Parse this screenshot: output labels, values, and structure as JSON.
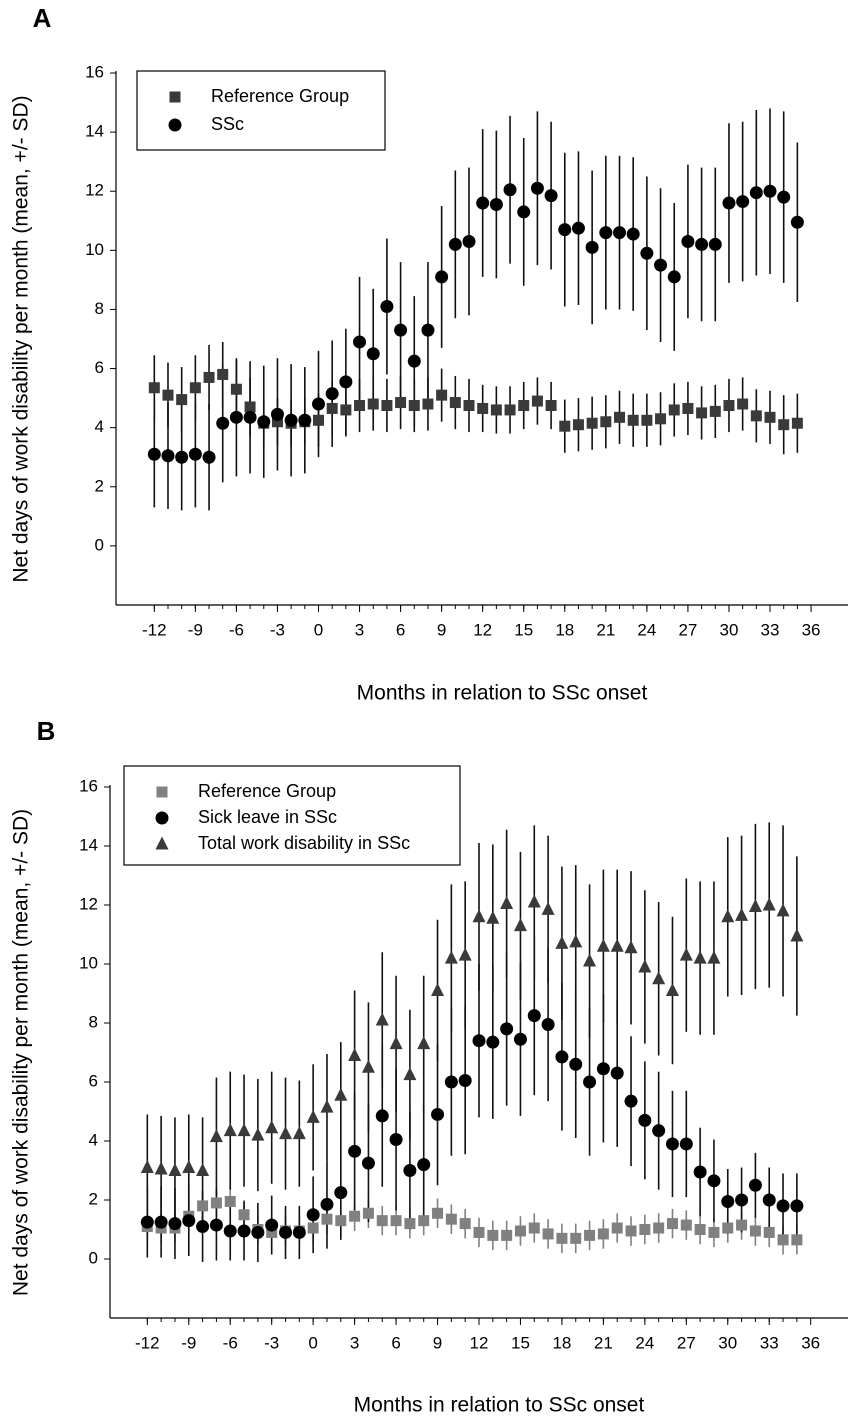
{
  "chart_data": [
    {
      "type": "scatter",
      "panel_label": "A",
      "x_label": "Months in relation to SSc onset",
      "y_label": "Net days of work disability per month (mean, +/- SD)",
      "x": [
        -12,
        -11,
        -10,
        -9,
        -8,
        -7,
        -6,
        -5,
        -4,
        -3,
        -2,
        -1,
        0,
        1,
        2,
        3,
        4,
        5,
        6,
        7,
        8,
        9,
        10,
        11,
        12,
        13,
        14,
        15,
        16,
        17,
        18,
        19,
        20,
        21,
        22,
        23,
        24,
        25,
        26,
        27,
        28,
        29,
        30,
        31,
        32,
        33,
        34,
        35
      ],
      "xlim": [
        -14.8,
        38.7
      ],
      "xticks": [
        -12,
        -9,
        -6,
        -3,
        0,
        3,
        6,
        9,
        12,
        15,
        18,
        21,
        24,
        27,
        30,
        33,
        36
      ],
      "ylim": [
        -2,
        16
      ],
      "yticks": [
        0,
        2,
        4,
        6,
        8,
        10,
        12,
        14,
        16
      ],
      "legend": "upper left",
      "series": [
        {
          "name": "Reference Group",
          "marker": "square",
          "color": "#3a3a3a",
          "values": [
            5.35,
            5.1,
            4.95,
            5.35,
            5.7,
            5.8,
            5.3,
            4.7,
            4.15,
            4.2,
            4.15,
            4.2,
            4.25,
            4.65,
            4.6,
            4.75,
            4.8,
            4.75,
            4.85,
            4.75,
            4.8,
            5.1,
            4.85,
            4.75,
            4.65,
            4.6,
            4.6,
            4.75,
            4.9,
            4.75,
            4.05,
            4.1,
            4.15,
            4.2,
            4.35,
            4.25,
            4.25,
            4.3,
            4.6,
            4.65,
            4.5,
            4.55,
            4.75,
            4.8,
            4.4,
            4.35,
            4.1,
            4.15
          ],
          "errors": [
            1.1,
            1.1,
            1.1,
            1.1,
            1.1,
            1.1,
            1.0,
            1.0,
            0.8,
            0.8,
            0.8,
            0.8,
            0.9,
            0.9,
            0.9,
            0.9,
            0.9,
            0.9,
            0.9,
            0.9,
            0.9,
            0.9,
            0.9,
            0.9,
            0.8,
            0.8,
            0.8,
            0.8,
            0.8,
            0.8,
            0.9,
            0.9,
            0.9,
            0.9,
            0.9,
            0.9,
            0.9,
            0.9,
            0.9,
            0.9,
            0.9,
            0.9,
            0.9,
            0.9,
            0.9,
            0.9,
            1.0,
            1.0
          ]
        },
        {
          "name": "SSc",
          "marker": "circle",
          "color": "#000000",
          "values": [
            3.1,
            3.05,
            3.0,
            3.1,
            3.0,
            4.15,
            4.35,
            4.35,
            4.2,
            4.45,
            4.25,
            4.25,
            4.8,
            5.15,
            5.55,
            6.9,
            6.5,
            8.1,
            7.3,
            6.25,
            7.3,
            9.1,
            10.2,
            10.3,
            11.6,
            11.55,
            12.05,
            11.3,
            12.1,
            11.85,
            10.7,
            10.75,
            10.1,
            10.6,
            10.6,
            10.55,
            9.9,
            9.5,
            9.1,
            10.3,
            10.2,
            10.2,
            11.6,
            11.65,
            11.95,
            12.0,
            11.8,
            10.95
          ],
          "errors": [
            1.8,
            1.8,
            1.8,
            1.8,
            1.8,
            2.0,
            2.0,
            1.9,
            1.9,
            1.9,
            1.9,
            1.8,
            1.8,
            1.8,
            1.8,
            2.2,
            2.2,
            2.3,
            2.3,
            2.2,
            2.3,
            2.4,
            2.5,
            2.5,
            2.5,
            2.5,
            2.5,
            2.5,
            2.6,
            2.5,
            2.6,
            2.6,
            2.6,
            2.6,
            2.6,
            2.6,
            2.6,
            2.6,
            2.5,
            2.6,
            2.6,
            2.6,
            2.7,
            2.7,
            2.8,
            2.8,
            2.9,
            2.7
          ]
        }
      ]
    },
    {
      "type": "scatter",
      "panel_label": "B",
      "x_label": "Months in relation to SSc onset",
      "y_label": "Net days of work disability per month (mean, +/- SD)",
      "x": [
        -12,
        -11,
        -10,
        -9,
        -8,
        -7,
        -6,
        -5,
        -4,
        -3,
        -2,
        -1,
        0,
        1,
        2,
        3,
        4,
        5,
        6,
        7,
        8,
        9,
        10,
        11,
        12,
        13,
        14,
        15,
        16,
        17,
        18,
        19,
        20,
        21,
        22,
        23,
        24,
        25,
        26,
        27,
        28,
        29,
        30,
        31,
        32,
        33,
        34,
        35
      ],
      "xlim": [
        -14.7,
        38.7
      ],
      "xticks": [
        -12,
        -9,
        -6,
        -3,
        0,
        3,
        6,
        9,
        12,
        15,
        18,
        21,
        24,
        27,
        30,
        33,
        36
      ],
      "ylim": [
        -2,
        16
      ],
      "yticks": [
        0,
        2,
        4,
        6,
        8,
        10,
        12,
        14,
        16
      ],
      "legend": "upper left",
      "series": [
        {
          "name": "Reference Group",
          "marker": "square",
          "color": "#808080",
          "values": [
            1.1,
            1.05,
            1.05,
            1.45,
            1.8,
            1.9,
            1.95,
            1.5,
            1.0,
            0.9,
            0.95,
            0.95,
            1.05,
            1.35,
            1.3,
            1.45,
            1.55,
            1.3,
            1.3,
            1.2,
            1.3,
            1.55,
            1.35,
            1.2,
            0.9,
            0.8,
            0.8,
            0.95,
            1.05,
            0.85,
            0.7,
            0.7,
            0.8,
            0.85,
            1.05,
            0.95,
            1.0,
            1.05,
            1.2,
            1.15,
            1.0,
            0.9,
            1.05,
            1.15,
            0.95,
            0.9,
            0.65,
            0.65
          ],
          "errors": [
            0.5,
            0.5,
            0.5,
            0.5,
            0.5,
            0.5,
            0.5,
            0.5,
            0.5,
            0.5,
            0.5,
            0.5,
            0.5,
            0.5,
            0.5,
            0.5,
            0.5,
            0.5,
            0.5,
            0.5,
            0.5,
            0.5,
            0.5,
            0.5,
            0.5,
            0.5,
            0.5,
            0.5,
            0.5,
            0.5,
            0.5,
            0.5,
            0.5,
            0.5,
            0.5,
            0.5,
            0.5,
            0.5,
            0.5,
            0.5,
            0.5,
            0.5,
            0.5,
            0.5,
            0.5,
            0.5,
            0.5,
            0.5
          ]
        },
        {
          "name": "Sick leave in SSc",
          "marker": "circle",
          "color": "#000000",
          "values": [
            1.25,
            1.25,
            1.2,
            1.3,
            1.1,
            1.15,
            0.95,
            0.95,
            0.9,
            1.15,
            0.9,
            0.9,
            1.5,
            1.85,
            2.25,
            3.65,
            3.25,
            4.85,
            4.05,
            3.0,
            3.2,
            4.9,
            6.0,
            6.05,
            7.4,
            7.35,
            7.8,
            7.45,
            8.25,
            7.95,
            6.85,
            6.6,
            6.0,
            6.45,
            6.3,
            5.35,
            4.7,
            4.35,
            3.9,
            3.9,
            2.95,
            2.65,
            1.95,
            2.0,
            2.5,
            2.0,
            1.8,
            1.8
          ],
          "errors": [
            1.2,
            1.2,
            1.2,
            1.2,
            1.2,
            1.2,
            1.0,
            1.0,
            1.0,
            1.0,
            0.9,
            0.9,
            1.3,
            1.5,
            1.6,
            2.0,
            2.0,
            2.4,
            2.4,
            2.0,
            2.0,
            2.4,
            2.5,
            2.5,
            2.6,
            2.6,
            2.6,
            2.6,
            2.7,
            2.6,
            2.5,
            2.5,
            2.5,
            2.5,
            2.5,
            2.2,
            2.0,
            2.0,
            1.8,
            1.8,
            1.5,
            1.4,
            1.1,
            1.1,
            1.1,
            1.1,
            1.1,
            1.1
          ]
        },
        {
          "name": "Total work disability in SSc",
          "marker": "triangle",
          "color": "#3a3a3a",
          "values": [
            3.1,
            3.05,
            3.0,
            3.1,
            3.0,
            4.15,
            4.35,
            4.35,
            4.2,
            4.45,
            4.25,
            4.25,
            4.8,
            5.15,
            5.55,
            6.9,
            6.5,
            8.1,
            7.3,
            6.25,
            7.3,
            9.1,
            10.2,
            10.3,
            11.6,
            11.55,
            12.05,
            11.3,
            12.1,
            11.85,
            10.7,
            10.75,
            10.1,
            10.6,
            10.6,
            10.55,
            9.9,
            9.5,
            9.1,
            10.3,
            10.2,
            10.2,
            11.6,
            11.65,
            11.95,
            12.0,
            11.8,
            10.95
          ],
          "errors": [
            1.8,
            1.8,
            1.8,
            1.8,
            1.8,
            2.0,
            2.0,
            1.9,
            1.9,
            1.9,
            1.9,
            1.8,
            1.8,
            1.8,
            1.8,
            2.2,
            2.2,
            2.3,
            2.3,
            2.2,
            2.3,
            2.4,
            2.5,
            2.5,
            2.5,
            2.5,
            2.5,
            2.5,
            2.6,
            2.5,
            2.6,
            2.6,
            2.6,
            2.6,
            2.6,
            2.6,
            2.6,
            2.6,
            2.5,
            2.6,
            2.6,
            2.6,
            2.7,
            2.7,
            2.8,
            2.8,
            2.9,
            2.7
          ]
        }
      ]
    }
  ]
}
